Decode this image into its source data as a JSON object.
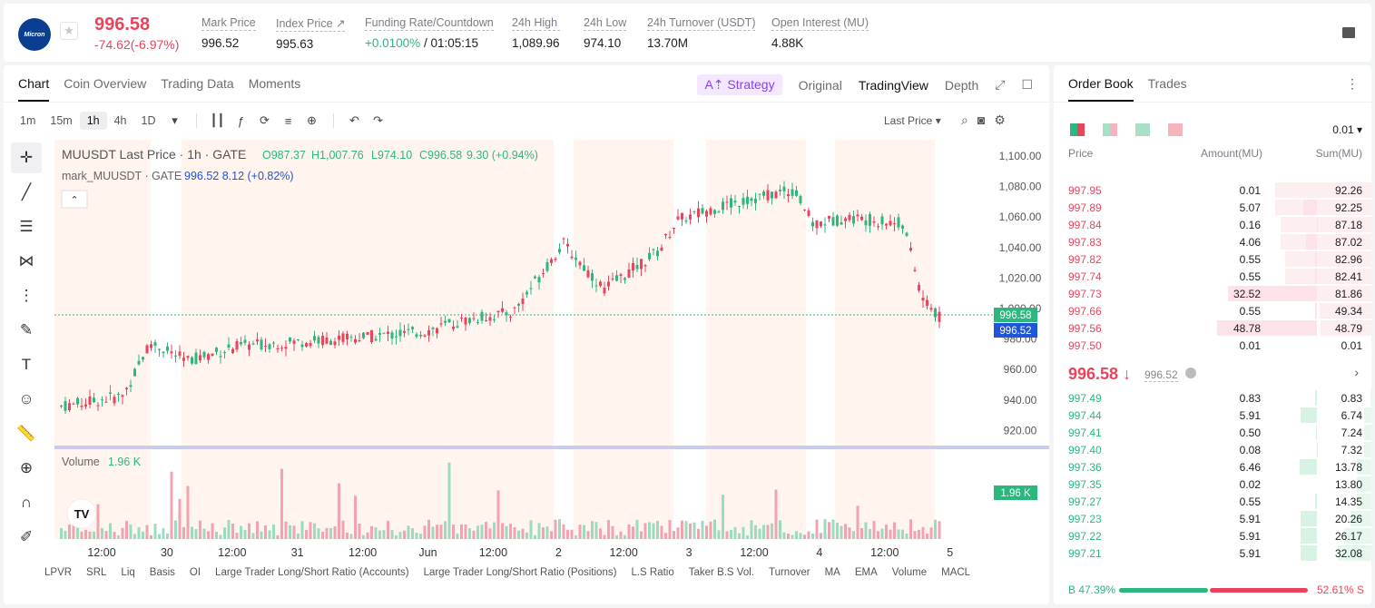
{
  "ticker": {
    "logo_text": "Micron",
    "price": "996.58",
    "change": "-74.62(-6.97%)",
    "stats": [
      {
        "label": "Mark Price",
        "value": "996.52"
      },
      {
        "label": "Index Price ↗",
        "value": "995.63"
      },
      {
        "label": "Funding Rate/Countdown",
        "value_green": "+0.0100%",
        "value": " / 01:05:15"
      },
      {
        "label": "24h High",
        "value": "1,089.96"
      },
      {
        "label": "24h Low",
        "value": "974.10"
      },
      {
        "label": "24h Turnover (USDT)",
        "value": "13.70M"
      },
      {
        "label": "Open Interest (MU)",
        "value": "4.88K"
      }
    ]
  },
  "chart_tabs": [
    "Chart",
    "Coin Overview",
    "Trading Data",
    "Moments"
  ],
  "view_tabs": {
    "strategy": "A⇡ Strategy",
    "original": "Original",
    "tradingview": "TradingView",
    "depth": "Depth"
  },
  "timeframes": [
    "1m",
    "15m",
    "1h",
    "4h",
    "1D"
  ],
  "price_type": "Last Price ▾",
  "legend": {
    "main": "MUUSDT Last Price · 1h · GATE",
    "o": "O987.37",
    "h": "H1,007.76",
    "l": "L974.10",
    "c": "C996.58",
    "chg": "9.30 (+0.94%)",
    "mark": "mark_MUUSDT · GATE",
    "mark_val": "996.52 8.12 (+0.82%)"
  },
  "volume_label": "Volume",
  "volume_value": "1.96 K",
  "price_axis": [
    "1,100.00",
    "1,080.00",
    "1,060.00",
    "1,040.00",
    "1,020.00",
    "1,000.00",
    "980.00",
    "960.00",
    "940.00",
    "920.00"
  ],
  "price_tags": {
    "last": "996.58",
    "mark": "996.52",
    "vol": "1.96 K"
  },
  "time_axis": [
    "12:00",
    "30",
    "12:00",
    "31",
    "12:00",
    "Jun",
    "12:00",
    "2",
    "12:00",
    "3",
    "12:00",
    "4",
    "12:00",
    "5"
  ],
  "indicators": [
    "LPVR",
    "SRL",
    "Liq",
    "Basis",
    "OI",
    "Large Trader Long/Short Ratio (Accounts)",
    "Large Trader Long/Short Ratio (Positions)",
    "L.S Ratio",
    "Taker B.S Vol.",
    "Turnover",
    "MA",
    "EMA",
    "Volume",
    "MACL"
  ],
  "orderbook": {
    "tabs": [
      "Order Book",
      "Trades"
    ],
    "precision": "0.01 ▾",
    "headers": {
      "price": "Price",
      "amount": "Amount(MU)",
      "sum": "Sum(MU)"
    },
    "asks": [
      {
        "p": "997.95",
        "a": "0.01",
        "s": "92.26"
      },
      {
        "p": "997.89",
        "a": "5.07",
        "s": "92.25"
      },
      {
        "p": "997.84",
        "a": "0.16",
        "s": "87.18"
      },
      {
        "p": "997.83",
        "a": "4.06",
        "s": "87.02"
      },
      {
        "p": "997.82",
        "a": "0.55",
        "s": "82.96"
      },
      {
        "p": "997.74",
        "a": "0.55",
        "s": "82.41"
      },
      {
        "p": "997.73",
        "a": "32.52",
        "s": "81.86"
      },
      {
        "p": "997.66",
        "a": "0.55",
        "s": "49.34"
      },
      {
        "p": "997.56",
        "a": "48.78",
        "s": "48.79"
      },
      {
        "p": "997.50",
        "a": "0.01",
        "s": "0.01"
      }
    ],
    "mid_price": "996.58 ↓",
    "mid_mark": "996.52",
    "bids": [
      {
        "p": "997.49",
        "a": "0.83",
        "s": "0.83"
      },
      {
        "p": "997.44",
        "a": "5.91",
        "s": "6.74"
      },
      {
        "p": "997.41",
        "a": "0.50",
        "s": "7.24"
      },
      {
        "p": "997.40",
        "a": "0.08",
        "s": "7.32"
      },
      {
        "p": "997.36",
        "a": "6.46",
        "s": "13.78"
      },
      {
        "p": "997.35",
        "a": "0.02",
        "s": "13.80"
      },
      {
        "p": "997.27",
        "a": "0.55",
        "s": "14.35"
      },
      {
        "p": "997.23",
        "a": "5.91",
        "s": "20.26"
      },
      {
        "p": "997.22",
        "a": "5.91",
        "s": "26.17"
      },
      {
        "p": "997.21",
        "a": "5.91",
        "s": "32.08"
      }
    ],
    "buy_ratio": "B 47.39%",
    "sell_ratio": "52.61% S",
    "buy_pct": 47.39
  },
  "colors": {
    "up": "#2db77e",
    "down": "#e8455c",
    "accent": "#8b3ff5"
  }
}
